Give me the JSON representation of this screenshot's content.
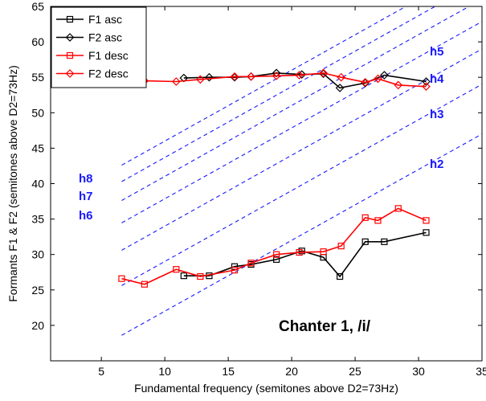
{
  "chart_data": {
    "type": "line",
    "xlabel": "Fundamental frequency (semitones above D2=73Hz)",
    "ylabel": "Formants F1 & F2 (semitones above D2=73Hz)",
    "xlim": [
      1,
      35
    ],
    "ylim": [
      15,
      65
    ],
    "xticks": [
      5,
      10,
      15,
      20,
      25,
      30,
      35
    ],
    "yticks": [
      20,
      25,
      30,
      35,
      40,
      45,
      50,
      55,
      60,
      65
    ],
    "grid": false,
    "legend_position": "top-left",
    "annotation": "Chanter 1, /i/",
    "series": [
      {
        "name": "F1 asc",
        "color": "#000000",
        "marker": "square",
        "x": [
          11.5,
          13.5,
          15.5,
          16.8,
          18.8,
          20.8,
          22.5,
          23.8,
          25.8,
          27.3,
          30.6
        ],
        "y": [
          27.0,
          27.0,
          28.3,
          28.6,
          29.3,
          30.5,
          29.6,
          26.9,
          31.8,
          31.8,
          33.1
        ]
      },
      {
        "name": "F2 asc",
        "color": "#000000",
        "marker": "diamond",
        "x": [
          11.5,
          13.5,
          15.5,
          16.8,
          18.8,
          20.8,
          22.5,
          23.8,
          25.8,
          27.3,
          30.6
        ],
        "y": [
          54.9,
          55.0,
          55.0,
          55.1,
          55.6,
          55.4,
          55.5,
          53.5,
          54.2,
          55.3,
          54.4
        ]
      },
      {
        "name": "F1 desc",
        "color": "#ff0000",
        "marker": "square",
        "x": [
          6.6,
          8.4,
          10.9,
          12.8,
          15.5,
          16.8,
          18.8,
          20.6,
          22.5,
          23.9,
          25.8,
          26.8,
          28.4,
          30.6
        ],
        "y": [
          26.6,
          25.8,
          27.9,
          26.9,
          27.8,
          28.8,
          30.0,
          30.3,
          30.4,
          31.2,
          35.2,
          34.8,
          36.5,
          34.8
        ]
      },
      {
        "name": "F2 desc",
        "color": "#ff0000",
        "marker": "diamond",
        "x": [
          6.6,
          8.4,
          10.9,
          12.8,
          15.5,
          16.8,
          18.8,
          20.6,
          22.5,
          23.9,
          25.8,
          26.8,
          28.4,
          30.6
        ],
        "y": [
          54.4,
          54.5,
          54.4,
          54.7,
          55.1,
          55.1,
          55.2,
          55.3,
          55.6,
          55.0,
          54.3,
          54.8,
          53.9,
          53.7
        ]
      }
    ],
    "harmonic_lines": [
      {
        "label": "h2",
        "n": 2
      },
      {
        "label": "h3",
        "n": 3
      },
      {
        "label": "h4",
        "n": 4
      },
      {
        "label": "h5",
        "n": 5
      },
      {
        "label": "h6",
        "n": 6
      },
      {
        "label": "h7",
        "n": 7
      },
      {
        "label": "h8",
        "n": 8
      }
    ],
    "harmonic_line_color": "#1a1aff"
  }
}
